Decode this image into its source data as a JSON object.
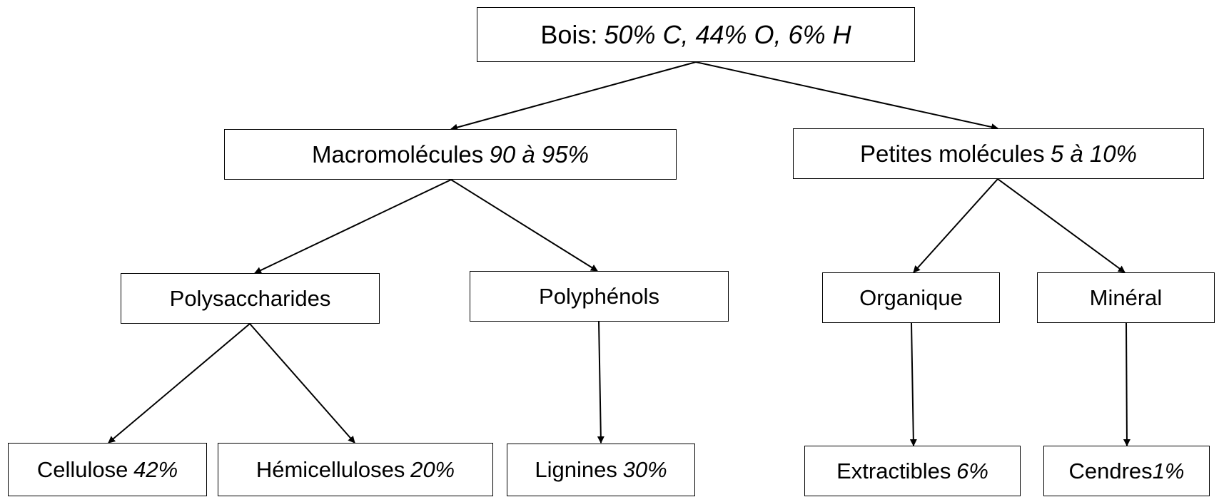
{
  "nodes": [
    {
      "label": "Bois:",
      "detail": "50% C, 44% O, 6% H"
    },
    {
      "label": "Macromolécules",
      "detail": "90 à 95%"
    },
    {
      "label": "Petites molécules",
      "detail": "5 à 10%"
    },
    {
      "label": "Polysaccharides"
    },
    {
      "label": "Polyphénols"
    },
    {
      "label": "Organique"
    },
    {
      "label": "Minéral"
    },
    {
      "label": "Cellulose",
      "detail": "42%"
    },
    {
      "label": "Hémicelluloses",
      "detail": "20%"
    },
    {
      "label": "Lignines",
      "detail": "30%"
    },
    {
      "label": "Extractibles",
      "detail": "6%"
    },
    {
      "label": "Cendres",
      "detail": "1%"
    }
  ]
}
